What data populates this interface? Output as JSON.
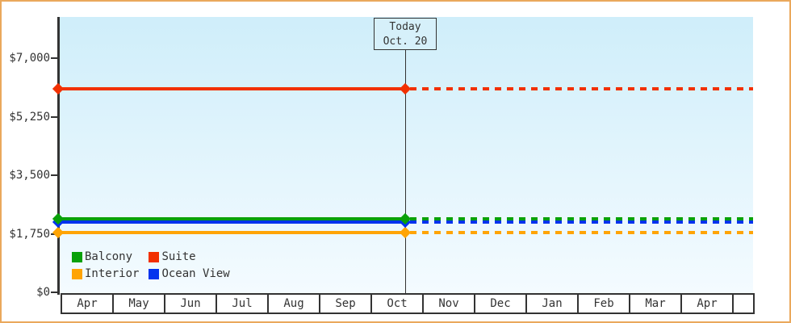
{
  "frame": {
    "border_color": "#EAA85C",
    "background": "#FFFFFF",
    "plot_bg_top": "#CFEEFA",
    "plot_bg_bottom": "#F4FBFF",
    "axis_color": "#333333",
    "text_color": "#333333"
  },
  "chart_data": {
    "type": "line",
    "title": "",
    "xlabel": "",
    "ylabel": "",
    "x_categories": [
      "Apr",
      "May",
      "Jun",
      "Jul",
      "Aug",
      "Sep",
      "Oct",
      "Nov",
      "Dec",
      "Jan",
      "Feb",
      "Mar",
      "Apr"
    ],
    "y_tick_labels": [
      "$7,000",
      "$5,250",
      "$3,500",
      "$1,750",
      "$0"
    ],
    "y_tick_values": [
      7000,
      5250,
      3500,
      1750,
      0
    ],
    "ylim": [
      0,
      8230
    ],
    "grid": false,
    "annotation": {
      "label": "Today",
      "date": "Oct. 20",
      "box_bg": "#D6F0FA",
      "month": "Oct",
      "day": 20
    },
    "series": [
      {
        "name": "Suite",
        "color": "#F23000",
        "value": 6080,
        "past_style": "solid",
        "future_style": "dashed"
      },
      {
        "name": "Balcony",
        "color": "#09A109",
        "value": 2200,
        "past_style": "solid",
        "future_style": "dashed"
      },
      {
        "name": "Ocean View",
        "color": "#0433EE",
        "value": 2100,
        "past_style": "solid",
        "future_style": "dashed"
      },
      {
        "name": "Interior",
        "color": "#FFA405",
        "value": 1790,
        "past_style": "solid",
        "future_style": "dashed"
      }
    ],
    "legend": {
      "position": "bottom-left-inside",
      "items": [
        {
          "label": "Balcony",
          "color": "#09A109"
        },
        {
          "label": "Suite",
          "color": "#F23000"
        },
        {
          "label": "Interior",
          "color": "#FFA405"
        },
        {
          "label": "Ocean View",
          "color": "#0433EE"
        }
      ]
    },
    "style_note": "Flat price lines with diamond markers at the axis and at Today; solid before Oct. 20, dashed projection after"
  }
}
